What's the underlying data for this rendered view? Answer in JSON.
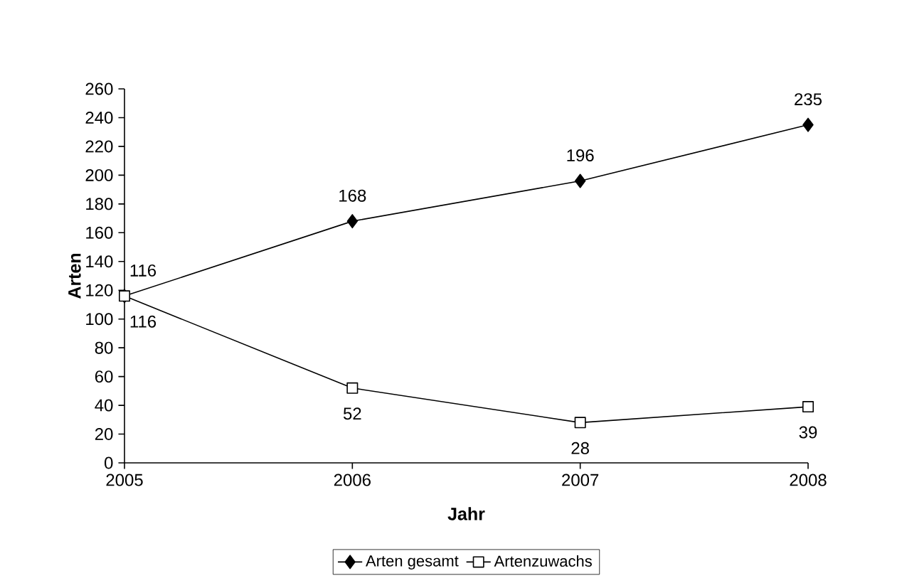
{
  "chart_data": {
    "type": "line",
    "xlabel": "Jahr",
    "ylabel": "Arten",
    "categories": [
      "2005",
      "2006",
      "2007",
      "2008"
    ],
    "series": [
      {
        "name": "Arten gesamt",
        "color": "#000000",
        "marker": "diamond",
        "values": [
          116,
          168,
          196,
          235
        ]
      },
      {
        "name": "Artenzuwachs",
        "color": "#000000",
        "marker": "square",
        "values": [
          116,
          52,
          28,
          39
        ]
      }
    ],
    "ylim": [
      0,
      260
    ],
    "yticks": [
      0,
      20,
      40,
      60,
      80,
      100,
      120,
      140,
      160,
      180,
      200,
      220,
      240,
      260
    ],
    "grid": false,
    "legend": "bottom",
    "data_labels": true,
    "line_style": "solid"
  }
}
